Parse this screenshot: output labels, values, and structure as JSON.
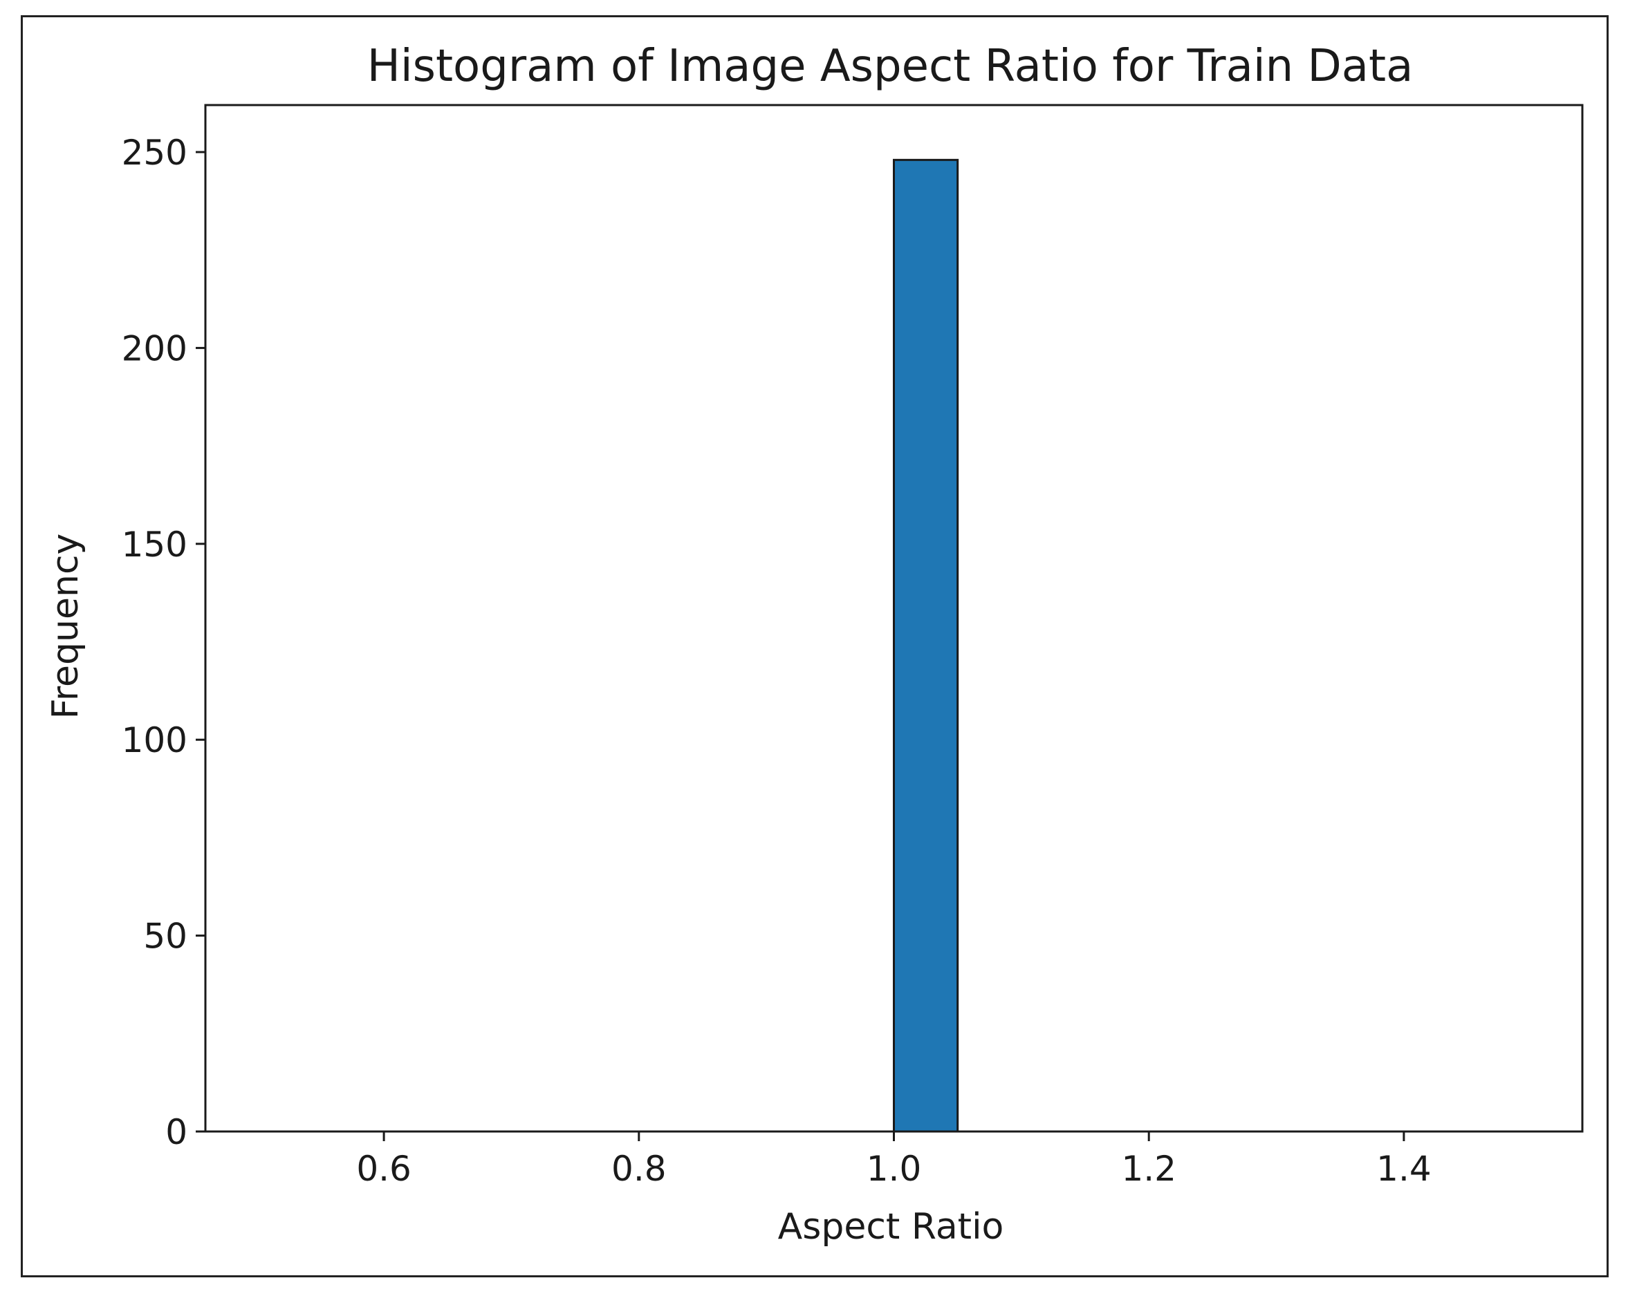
{
  "chart_data": {
    "type": "bar",
    "title": "Histogram of Image Aspect Ratio for Train Data",
    "xlabel": "Aspect Ratio",
    "ylabel": "Frequency",
    "xlim": [
      0.46,
      1.54
    ],
    "ylim": [
      0,
      262
    ],
    "x_ticks": [
      {
        "value": 0.6,
        "label": "0.6"
      },
      {
        "value": 0.8,
        "label": "0.8"
      },
      {
        "value": 1.0,
        "label": "1.0"
      },
      {
        "value": 1.2,
        "label": "1.2"
      },
      {
        "value": 1.4,
        "label": "1.4"
      }
    ],
    "y_ticks": [
      {
        "value": 0,
        "label": "0"
      },
      {
        "value": 50,
        "label": "50"
      },
      {
        "value": 100,
        "label": "100"
      },
      {
        "value": 150,
        "label": "150"
      },
      {
        "value": 200,
        "label": "200"
      },
      {
        "value": 250,
        "label": "250"
      }
    ],
    "bins": [
      {
        "start": 0.5,
        "end": 0.55,
        "count": 0
      },
      {
        "start": 0.55,
        "end": 0.6,
        "count": 0
      },
      {
        "start": 0.6,
        "end": 0.65,
        "count": 0
      },
      {
        "start": 0.65,
        "end": 0.7,
        "count": 0
      },
      {
        "start": 0.7,
        "end": 0.75,
        "count": 0
      },
      {
        "start": 0.75,
        "end": 0.8,
        "count": 0
      },
      {
        "start": 0.8,
        "end": 0.85,
        "count": 0
      },
      {
        "start": 0.85,
        "end": 0.9,
        "count": 0
      },
      {
        "start": 0.9,
        "end": 0.95,
        "count": 0
      },
      {
        "start": 0.95,
        "end": 1.0,
        "count": 0
      },
      {
        "start": 1.0,
        "end": 1.05,
        "count": 248
      },
      {
        "start": 1.05,
        "end": 1.1,
        "count": 0
      },
      {
        "start": 1.1,
        "end": 1.15,
        "count": 0
      },
      {
        "start": 1.15,
        "end": 1.2,
        "count": 0
      },
      {
        "start": 1.2,
        "end": 1.25,
        "count": 0
      },
      {
        "start": 1.25,
        "end": 1.3,
        "count": 0
      },
      {
        "start": 1.3,
        "end": 1.35,
        "count": 0
      },
      {
        "start": 1.35,
        "end": 1.4,
        "count": 0
      },
      {
        "start": 1.4,
        "end": 1.45,
        "count": 0
      },
      {
        "start": 1.45,
        "end": 1.5,
        "count": 0
      }
    ],
    "grid": false,
    "legend": "none",
    "bar_color": "#1f77b4",
    "edge_color": "#1a1a1a"
  }
}
